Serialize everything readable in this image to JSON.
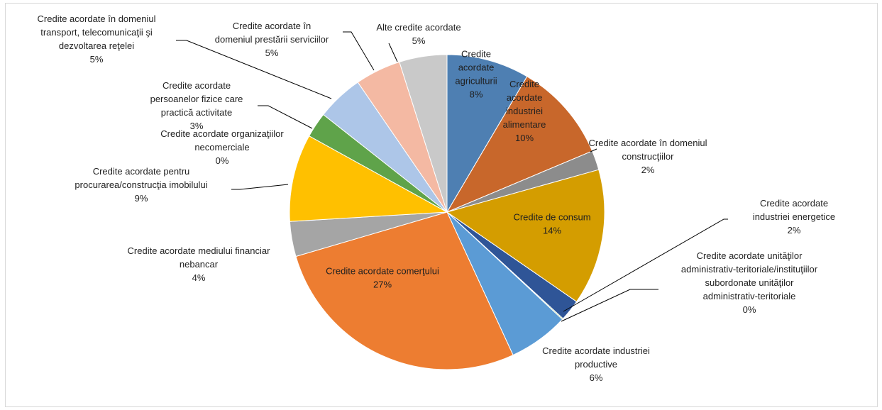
{
  "chart_data": {
    "type": "pie",
    "start_angle_deg": 0,
    "direction": "clockwise",
    "slices": [
      {
        "label": "Credite acordate agriculturii",
        "label_lines": [
          "Credite",
          "acordate",
          "agriculturii"
        ],
        "value": 8.5,
        "pct": "8%",
        "color": "#4e7fb2",
        "label_mode": "inside"
      },
      {
        "label": "Credite acordate industriei alimentare",
        "label_lines": [
          "Credite",
          "acordate",
          "industriei",
          "alimentare"
        ],
        "value": 10.2,
        "pct": "10%",
        "color": "#c8672b",
        "label_mode": "inside"
      },
      {
        "label": "Credite acordate în domeniul construcţiilor",
        "label_lines": [
          "Credite acordate în domeniul",
          "construcţiilor"
        ],
        "value": 2.0,
        "pct": "2%",
        "color": "#8c8c8c",
        "label_mode": "outside"
      },
      {
        "label": "Credite de consum",
        "label_lines": [
          "Credite de consum"
        ],
        "value": 14.0,
        "pct": "14%",
        "color": "#d49d00",
        "label_mode": "inside"
      },
      {
        "label": "Credite acordate industriei energetice",
        "label_lines": [
          "Credite acordate",
          "industriei energetice"
        ],
        "value": 2.2,
        "pct": "2%",
        "color": "#2f5597",
        "label_mode": "outside"
      },
      {
        "label": "Credite acordate unităţilor administrativ-teritoriale/instituţiilor subordonate unităţilor administrativ-teritoriale",
        "label_lines": [
          "Credite acordate unităţilor",
          "administrativ-teritoriale/instituţiilor",
          "subordonate unităţilor",
          "administrativ-teritoriale"
        ],
        "value": 0.1,
        "pct": "0%",
        "color": "#70ad47",
        "label_mode": "outside"
      },
      {
        "label": "Credite acordate industriei productive",
        "label_lines": [
          "Credite acordate industriei",
          "productive"
        ],
        "value": 6.2,
        "pct": "6%",
        "color": "#5b9bd5",
        "label_mode": "outside"
      },
      {
        "label": "Credite acordate comerţului",
        "label_lines": [
          "Credite acordate comerţului"
        ],
        "value": 27.4,
        "pct": "27%",
        "color": "#ed7d31",
        "label_mode": "inside"
      },
      {
        "label": "Credite acordate mediului financiar nebancar",
        "label_lines": [
          "Credite acordate mediului financiar",
          "nebancar"
        ],
        "value": 3.6,
        "pct": "4%",
        "color": "#a5a5a5",
        "label_mode": "outside"
      },
      {
        "label": "Credite acordate pentru procurarea/construcţia imobilului",
        "label_lines": [
          "Credite acordate pentru",
          "procurarea/construcţia imobilului"
        ],
        "value": 9.0,
        "pct": "9%",
        "color": "#ffc000",
        "label_mode": "outside"
      },
      {
        "label": "Credite acordate organizaţiilor necomerciale",
        "label_lines": [
          "Credite acordate organizaţiilor",
          "necomerciale"
        ],
        "value": 0.0,
        "pct": "0%",
        "color": "#4472c4",
        "label_mode": "outside"
      },
      {
        "label": "Credite acordate persoanelor fizice care practică activitate",
        "label_lines": [
          "Credite acordate",
          "persoanelor fizice care",
          "practică activitate"
        ],
        "value": 2.6,
        "pct": "3%",
        "color": "#5fa34a",
        "label_mode": "outside"
      },
      {
        "label": "Credite acordate în domeniul transport, telecomunicaţii şi dezvoltarea reţelei",
        "label_lines": [
          "Credite acordate în domeniul",
          "transport, telecomunicaţii şi",
          "dezvoltarea reţelei"
        ],
        "value": 4.8,
        "pct": "5%",
        "color": "#adc6e8",
        "label_mode": "outside"
      },
      {
        "label": "Credite acordate în domeniul prestării serviciilor",
        "label_lines": [
          "Credite acordate în",
          "domeniul prestării serviciilor"
        ],
        "value": 4.7,
        "pct": "5%",
        "color": "#f4b9a3",
        "label_mode": "outside"
      },
      {
        "label": "Alte credite acordate",
        "label_lines": [
          "Alte credite acordate"
        ],
        "value": 4.9,
        "pct": "5%",
        "color": "#c9c9c9",
        "label_mode": "outside"
      }
    ]
  }
}
